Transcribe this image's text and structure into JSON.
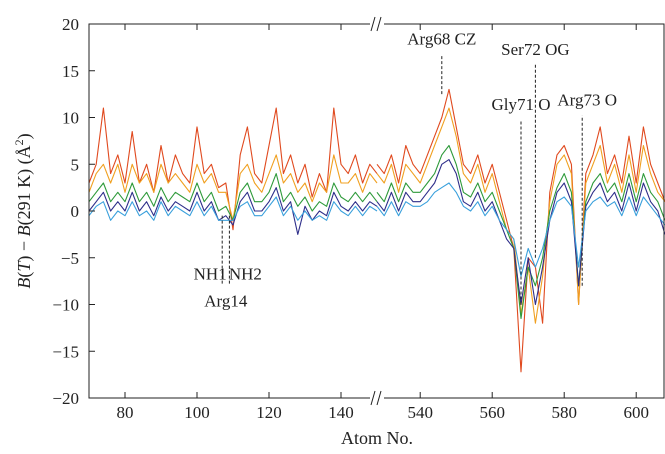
{
  "chart_data": {
    "type": "line",
    "title": "",
    "xlabel": "Atom No.",
    "ylabel": "B(T) − B(291 K) (Å²)",
    "ylim": [
      -20,
      20
    ],
    "x_segments": [
      [
        70,
        150
      ],
      [
        528,
        608
      ]
    ],
    "xticks": [
      80,
      100,
      120,
      140,
      540,
      560,
      580,
      600
    ],
    "yticks": [
      -20,
      -15,
      -10,
      -5,
      0,
      5,
      10,
      15,
      20
    ],
    "grid": false,
    "axis_break": true,
    "series": [
      {
        "color": "#e0491e",
        "x": [
          70,
          72,
          74,
          76,
          78,
          80,
          82,
          84,
          86,
          88,
          90,
          92,
          94,
          96,
          98,
          100,
          102,
          104,
          106,
          108,
          110,
          112,
          114,
          116,
          118,
          120,
          122,
          124,
          126,
          128,
          130,
          132,
          134,
          136,
          138,
          140,
          142,
          144,
          146,
          148,
          150,
          528,
          530,
          532,
          534,
          536,
          538,
          540,
          542,
          544,
          546,
          548,
          550,
          552,
          554,
          556,
          558,
          560,
          562,
          564,
          566,
          568,
          570,
          572,
          574,
          576,
          578,
          580,
          582,
          584,
          586,
          588,
          590,
          592,
          594,
          596,
          598,
          600,
          602,
          604,
          606,
          608
        ],
        "y": [
          3,
          5,
          11,
          4,
          6,
          3,
          8.5,
          3,
          5,
          2,
          7,
          3,
          6,
          4,
          3,
          9,
          4,
          5,
          2.5,
          3,
          -2,
          6,
          9,
          4,
          3,
          7,
          11,
          4,
          6,
          3,
          5,
          1.5,
          4,
          2,
          11,
          5,
          4,
          6,
          3,
          5,
          4,
          5,
          4,
          6,
          3,
          7,
          5,
          4,
          6,
          8,
          10,
          13,
          9,
          5,
          4,
          6,
          3,
          5,
          2,
          -1,
          -4,
          -17.2,
          -5,
          -6,
          -12,
          2,
          6,
          7,
          5,
          -10,
          4,
          6,
          9,
          4,
          6,
          3,
          8,
          3,
          9,
          5,
          3,
          1
        ]
      },
      {
        "color": "#f0a020",
        "x": [
          70,
          72,
          74,
          76,
          78,
          80,
          82,
          84,
          86,
          88,
          90,
          92,
          94,
          96,
          98,
          100,
          102,
          104,
          106,
          108,
          110,
          112,
          114,
          116,
          118,
          120,
          122,
          124,
          126,
          128,
          130,
          132,
          134,
          136,
          138,
          140,
          142,
          144,
          146,
          148,
          150,
          528,
          530,
          532,
          534,
          536,
          538,
          540,
          542,
          544,
          546,
          548,
          550,
          552,
          554,
          556,
          558,
          560,
          562,
          564,
          566,
          568,
          570,
          572,
          574,
          576,
          578,
          580,
          582,
          584,
          586,
          588,
          590,
          592,
          594,
          596,
          598,
          600,
          602,
          604,
          606,
          608
        ],
        "y": [
          2,
          4,
          5,
          3,
          5,
          2,
          5,
          3,
          4,
          2,
          5,
          3,
          4,
          3,
          2,
          5,
          3,
          4,
          2,
          2,
          -1,
          4,
          5,
          3,
          2,
          4,
          6,
          3,
          4,
          2,
          3,
          1,
          3,
          2,
          6,
          3,
          3,
          4,
          2,
          4,
          3,
          4,
          3,
          5,
          2,
          5,
          4,
          3,
          5,
          7,
          9,
          11,
          8,
          4,
          3,
          5,
          2,
          4,
          1,
          -2,
          -3,
          -11,
          -6,
          -12,
          -7,
          1,
          5,
          6,
          4,
          -10,
          3,
          5,
          7,
          3,
          5,
          2,
          6,
          2,
          7,
          4,
          2,
          1
        ]
      },
      {
        "color": "#2e9a3a",
        "x": [
          70,
          72,
          74,
          76,
          78,
          80,
          82,
          84,
          86,
          88,
          90,
          92,
          94,
          96,
          98,
          100,
          102,
          104,
          106,
          108,
          110,
          112,
          114,
          116,
          118,
          120,
          122,
          124,
          126,
          128,
          130,
          132,
          134,
          136,
          138,
          140,
          142,
          144,
          146,
          148,
          150,
          528,
          530,
          532,
          534,
          536,
          538,
          540,
          542,
          544,
          546,
          548,
          550,
          552,
          554,
          556,
          558,
          560,
          562,
          564,
          566,
          568,
          570,
          572,
          574,
          576,
          578,
          580,
          582,
          584,
          586,
          588,
          590,
          592,
          594,
          596,
          598,
          600,
          602,
          604,
          606,
          608
        ],
        "y": [
          1,
          2,
          3,
          1,
          2,
          1,
          3,
          1,
          2,
          0.5,
          2.5,
          1,
          2,
          1.5,
          1,
          3,
          1,
          2,
          0,
          0.5,
          -1,
          2,
          3,
          1,
          1,
          2,
          4,
          1,
          2,
          0.5,
          1.5,
          0,
          1,
          0.5,
          3,
          1.5,
          1,
          2,
          1,
          2,
          1,
          2,
          1,
          3,
          1,
          3,
          2,
          2,
          3,
          4,
          6,
          7,
          5,
          2,
          1.5,
          3,
          1,
          2,
          0,
          -2,
          -4,
          -11.5,
          -6,
          -8,
          -5,
          0,
          2.5,
          4,
          2,
          -8,
          1,
          3,
          4,
          2,
          3,
          1,
          4,
          1,
          4,
          2,
          1,
          -1
        ]
      },
      {
        "color": "#2e2e8a",
        "x": [
          70,
          72,
          74,
          76,
          78,
          80,
          82,
          84,
          86,
          88,
          90,
          92,
          94,
          96,
          98,
          100,
          102,
          104,
          106,
          108,
          110,
          112,
          114,
          116,
          118,
          120,
          122,
          124,
          126,
          128,
          130,
          132,
          134,
          136,
          138,
          140,
          142,
          144,
          146,
          148,
          150,
          528,
          530,
          532,
          534,
          536,
          538,
          540,
          542,
          544,
          546,
          548,
          550,
          552,
          554,
          556,
          558,
          560,
          562,
          564,
          566,
          568,
          570,
          572,
          574,
          576,
          578,
          580,
          582,
          584,
          586,
          588,
          590,
          592,
          594,
          596,
          598,
          600,
          602,
          604,
          606,
          608
        ],
        "y": [
          0,
          1,
          2,
          0,
          1,
          0,
          2,
          0,
          1,
          -0.5,
          1.5,
          0,
          1,
          0.5,
          0,
          2,
          0,
          1,
          -1,
          -0.5,
          -1.5,
          1,
          2,
          0,
          0,
          1,
          2.5,
          0,
          1,
          -2.5,
          0.5,
          -1,
          0,
          -0.5,
          2,
          0.5,
          0,
          1,
          0,
          1,
          0.5,
          1,
          0,
          2,
          0,
          2,
          1,
          1,
          2,
          3,
          5,
          5.5,
          4,
          1,
          0.5,
          2,
          0,
          1,
          -1,
          -3,
          -4,
          -10,
          -5,
          -10,
          -6,
          -1,
          2,
          3,
          1,
          -8,
          0.5,
          2,
          3,
          1,
          2,
          0,
          3,
          0,
          3,
          1,
          0,
          -2.5
        ]
      },
      {
        "color": "#3aa0dc",
        "x": [
          70,
          72,
          74,
          76,
          78,
          80,
          82,
          84,
          86,
          88,
          90,
          92,
          94,
          96,
          98,
          100,
          102,
          104,
          106,
          108,
          110,
          112,
          114,
          116,
          118,
          120,
          122,
          124,
          126,
          128,
          130,
          132,
          134,
          136,
          138,
          140,
          142,
          144,
          146,
          148,
          150,
          528,
          530,
          532,
          534,
          536,
          538,
          540,
          542,
          544,
          546,
          548,
          550,
          552,
          554,
          556,
          558,
          560,
          562,
          564,
          566,
          568,
          570,
          572,
          574,
          576,
          578,
          580,
          582,
          584,
          586,
          588,
          590,
          592,
          594,
          596,
          598,
          600,
          602,
          604,
          606,
          608
        ],
        "y": [
          -0.5,
          0.5,
          1,
          -1,
          0,
          -0.5,
          1,
          -0.5,
          0,
          -1,
          1,
          -0.5,
          0.5,
          0,
          -0.5,
          1,
          -0.5,
          0.5,
          -1,
          -1,
          -1,
          0.5,
          1,
          -0.5,
          -0.5,
          0.5,
          1.5,
          -0.5,
          0.5,
          -1,
          0,
          -1,
          -0.5,
          -1,
          1,
          0,
          -0.5,
          0.5,
          -0.5,
          0.5,
          0,
          0.5,
          -0.5,
          1,
          -0.5,
          1,
          0.5,
          0.5,
          1,
          2,
          2.5,
          3,
          2,
          0.5,
          0,
          1,
          -0.5,
          0.5,
          -1,
          -2,
          -3,
          -7,
          -4,
          -6,
          -4,
          -1,
          1,
          1.5,
          0.5,
          -6,
          0,
          1,
          1.5,
          0.5,
          1,
          -0.5,
          1.5,
          -0.5,
          1.5,
          0.5,
          -0.5,
          -1.5
        ]
      }
    ],
    "annotations": [
      {
        "text": "Arg68 CZ",
        "x": 546,
        "y_from": 12.5,
        "y_to": 17.5
      },
      {
        "text": "Ser72 OG",
        "x": 572,
        "y_from": -5,
        "y_to": 16.5
      },
      {
        "text": "Gly71 O",
        "x": 568,
        "y_from": -10,
        "y_to": 10.5
      },
      {
        "text": "Arg73 O",
        "x": 585,
        "y_from": -8,
        "y_to": 11
      },
      {
        "text": "NH1",
        "x": 107,
        "y_from": -0.5,
        "y_to": -7
      },
      {
        "text": "NH2",
        "x": 109,
        "y_from": -0.5,
        "y_to": -7
      },
      {
        "text": "Arg14",
        "x": 108,
        "y_from": 0,
        "y_to": 0
      }
    ]
  }
}
